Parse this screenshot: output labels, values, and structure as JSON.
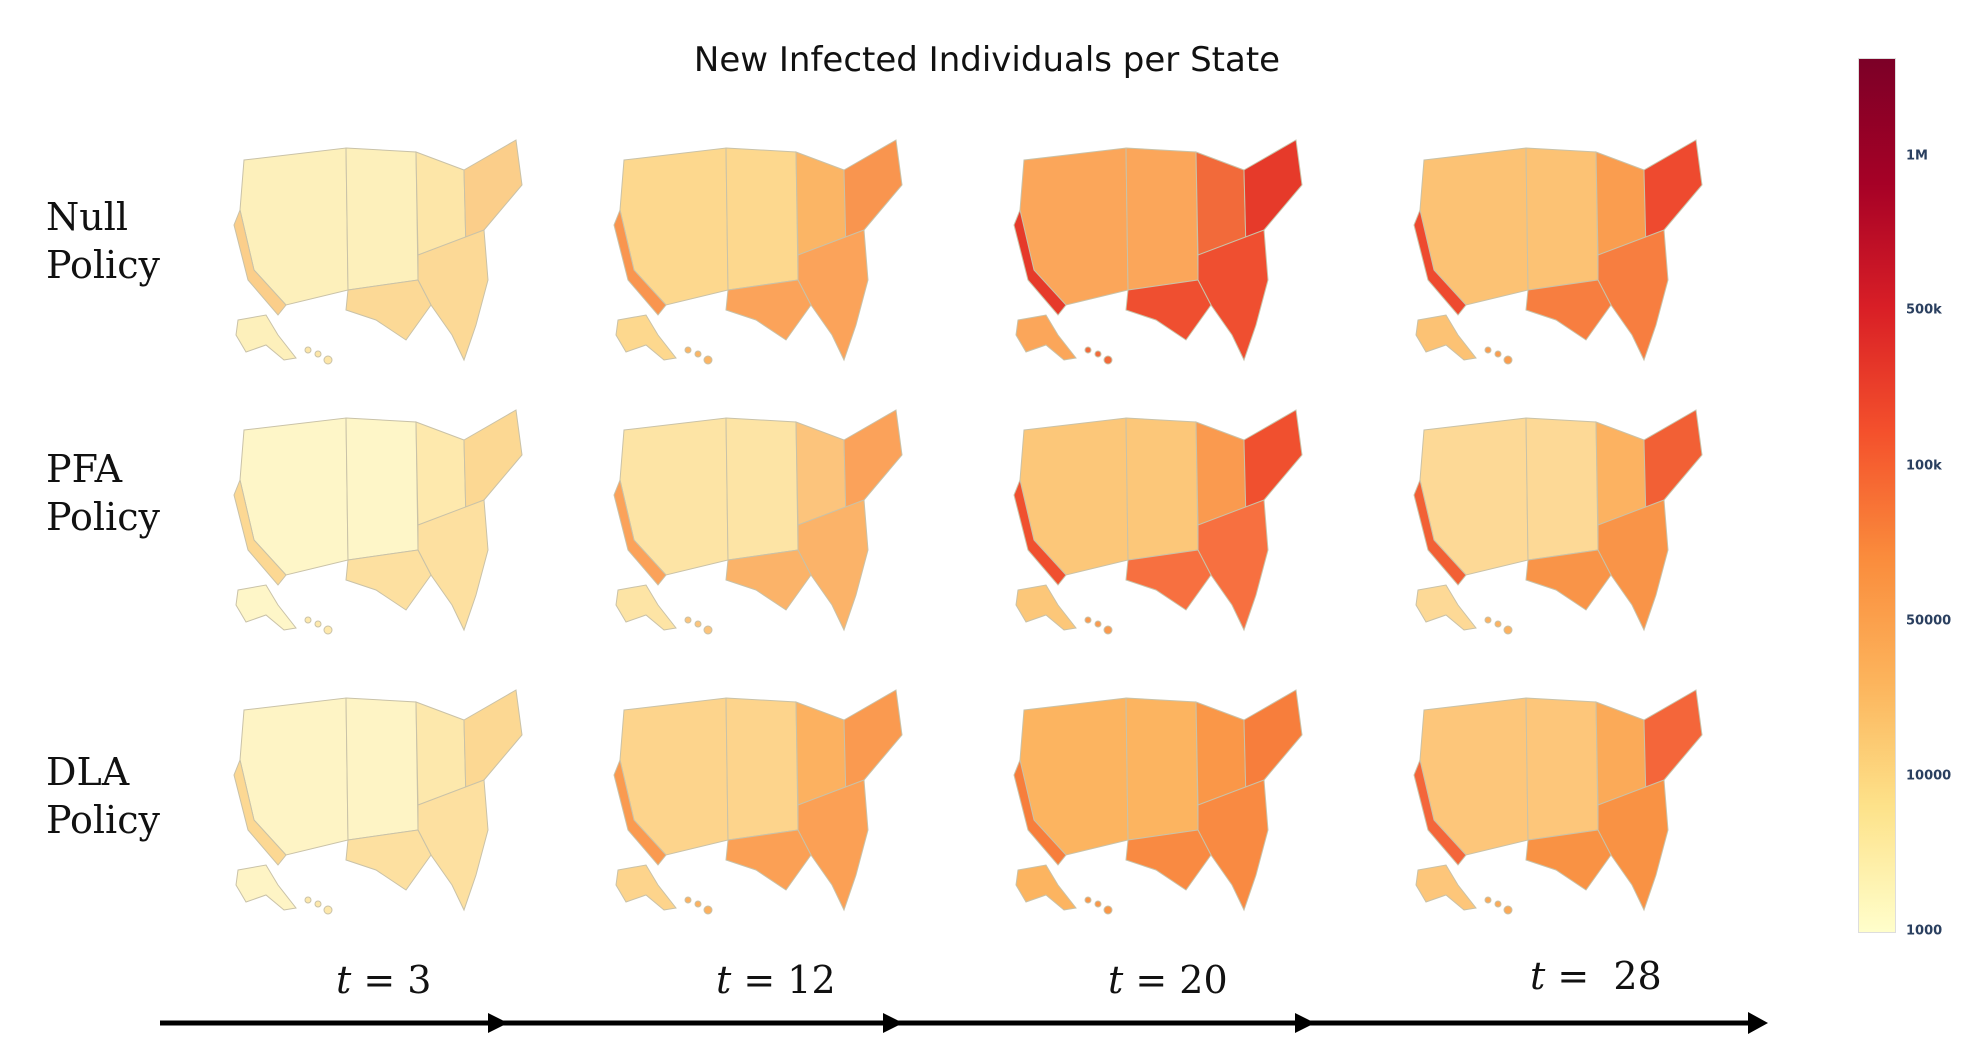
{
  "title": "New Infected Individuals per State",
  "rows": [
    {
      "line1": "Null",
      "line2": "Policy"
    },
    {
      "line1": "PFA",
      "line2": "Policy"
    },
    {
      "line1": "DLA",
      "line2": "Policy"
    }
  ],
  "time_steps": [
    {
      "var": "t",
      "rest": " = 3"
    },
    {
      "var": "t",
      "rest": " = 12"
    },
    {
      "var": "t",
      "rest": " = 20"
    },
    {
      "var": "t",
      "rest": " =  28"
    }
  ],
  "colorbar": {
    "ticks": [
      "1M",
      "500k",
      "100k",
      "50000",
      "10000",
      "1000"
    ],
    "colors": [
      "#fffecb",
      "#fde28a",
      "#fcb45c",
      "#fa8c3c",
      "#f4512c",
      "#d91f26",
      "#a60126",
      "#7c0027"
    ]
  },
  "map_shading": [
    {
      "base": "#fdf0bb",
      "east": "#fde6a8",
      "south": "#fcd996",
      "hot": "#fbce8a"
    },
    {
      "base": "#fdd88e",
      "east": "#fbb565",
      "south": "#fba35a",
      "hot": "#f9954f"
    },
    {
      "base": "#fba65a",
      "east": "#f26a3a",
      "south": "#ef4f30",
      "hot": "#e63a2a"
    },
    {
      "base": "#fcc274",
      "east": "#fa9d4f",
      "south": "#f77e40",
      "hot": "#ee4a2f"
    },
    {
      "base": "#fef6c8",
      "east": "#fee9ad",
      "south": "#fde0a0",
      "hot": "#fcd893"
    },
    {
      "base": "#fde4a5",
      "east": "#fcc47c",
      "south": "#fbb369",
      "hot": "#fba25a"
    },
    {
      "base": "#fcc779",
      "east": "#fa9a4f",
      "south": "#f77040",
      "hot": "#f0502f"
    },
    {
      "base": "#fdd996",
      "east": "#fcb261",
      "south": "#f99448",
      "hot": "#f26035"
    },
    {
      "base": "#fef4c5",
      "east": "#fde8ac",
      "south": "#fde0a0",
      "hot": "#fcd893"
    },
    {
      "base": "#fdd48c",
      "east": "#fcb160",
      "south": "#fba055",
      "hot": "#fa9a50"
    },
    {
      "base": "#fcb460",
      "east": "#fa9748",
      "south": "#f98a42",
      "hot": "#f77e3c"
    },
    {
      "base": "#fdc67a",
      "east": "#fbaa58",
      "south": "#f99244",
      "hot": "#f4663a"
    }
  ]
}
